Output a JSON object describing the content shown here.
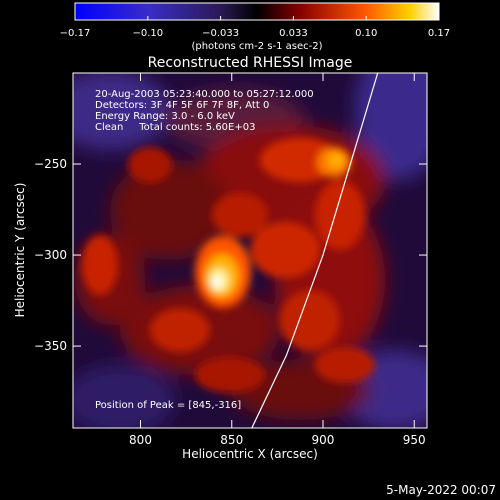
{
  "chart_data": {
    "type": "heatmap",
    "title": "Reconstructed RHESSI Image",
    "xlabel": "Heliocentric X (arcsec)",
    "ylabel": "Heliocentric Y (arcsec)",
    "xlim": [
      763,
      957
    ],
    "ylim": [
      -395,
      -200
    ],
    "x_ticks": [
      800,
      850,
      900,
      950
    ],
    "y_ticks": [
      -250,
      -300,
      -350
    ],
    "colorbar": {
      "range": [
        -0.17,
        0.17
      ],
      "ticks": [
        "-0.17",
        "-0.10",
        "-0.033",
        "0.033",
        "0.10",
        "0.17"
      ],
      "label": "(photons cm-2 s-1 asec-2)"
    },
    "info_lines": [
      "20-Aug-2003 05:23:40.000 to 05:27:12.000",
      "Detectors: 3F 4F 5F 6F 7F 8F, Att 0",
      "Energy Range: 3.0 - 6.0 keV",
      "Clean     Total counts: 5.60E+03"
    ],
    "peak_label": "Position of Peak = [845,-316]",
    "peak": {
      "x": 845,
      "y": -316,
      "value": 0.17
    },
    "secondary_peak": {
      "x": 915,
      "y": -253
    },
    "limb_curve": [
      [
        861,
        -395
      ],
      [
        880,
        -355
      ],
      [
        900,
        -300
      ],
      [
        915,
        -250
      ],
      [
        930,
        -200
      ]
    ]
  },
  "footer_date": "5-May-2022 00:07"
}
